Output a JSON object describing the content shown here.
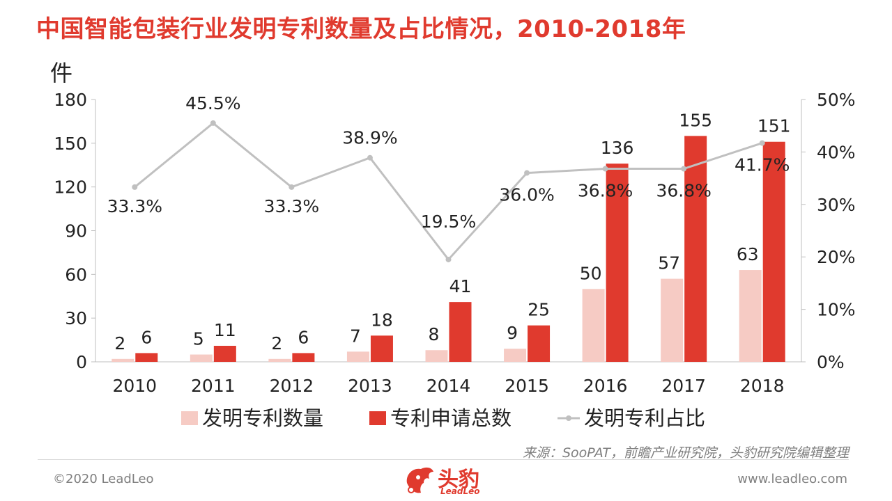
{
  "title": "中国智能包装行业发明专利数量及占比情况，2010-2018年",
  "source": "来源：SooPAT，前瞻产业研究院，头豹研究院编辑整理",
  "footer": {
    "copyright": "©2020 LeadLeo",
    "website": "www.leadleo.com"
  },
  "logo": {
    "name": "头豹",
    "sub": "LeadLeo"
  },
  "colors": {
    "accent": "#e03a2e",
    "light_bar": "#f6cbc4",
    "line": "#c0c0c0"
  },
  "chart_data": {
    "type": "bar",
    "categories": [
      "2010",
      "2011",
      "2012",
      "2013",
      "2014",
      "2015",
      "2016",
      "2017",
      "2018"
    ],
    "y_unit_label": "件",
    "ylim": [
      0,
      180
    ],
    "y_ticks": [
      "0",
      "30",
      "60",
      "90",
      "120",
      "150",
      "180"
    ],
    "y2lim": [
      0,
      50
    ],
    "y2_ticks": [
      "0%",
      "10%",
      "20%",
      "30%",
      "40%",
      "50%"
    ],
    "series": [
      {
        "name": "发明专利数量",
        "type": "bar",
        "values": [
          2,
          5,
          2,
          7,
          8,
          9,
          50,
          57,
          63
        ]
      },
      {
        "name": "专利申请总数",
        "type": "bar",
        "values": [
          6,
          11,
          6,
          18,
          41,
          25,
          136,
          155,
          151
        ]
      },
      {
        "name": "发明专利占比",
        "type": "line",
        "axis": "right",
        "values": [
          33.3,
          45.5,
          33.3,
          38.9,
          19.5,
          36.0,
          36.8,
          36.8,
          41.7
        ],
        "labels": [
          "33.3%",
          "45.5%",
          "33.3%",
          "38.9%",
          "19.5%",
          "36.0%",
          "36.8%",
          "36.8%",
          "41.7%"
        ]
      }
    ],
    "legend_position": "bottom",
    "grid": false
  }
}
